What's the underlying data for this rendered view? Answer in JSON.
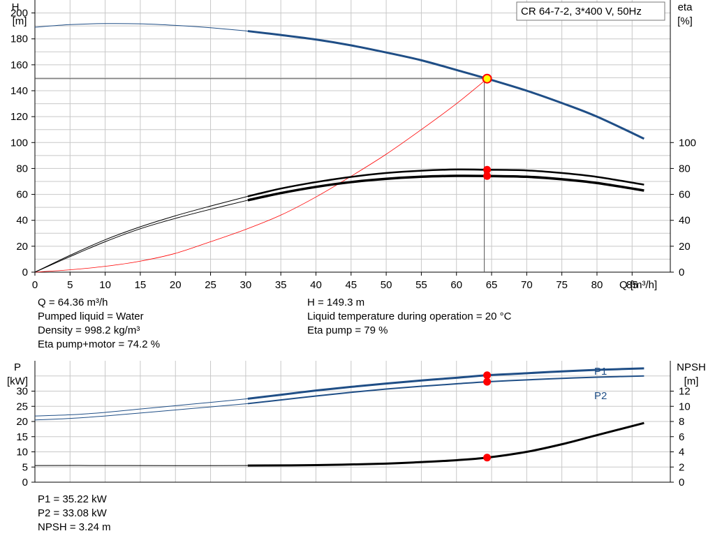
{
  "title": "CR 64-7-2, 3*400 V, 50Hz",
  "info_top_left": [
    "Q = 64.36 m³/h",
    "Pumped liquid = Water",
    "Density = 998.2 kg/m³",
    "Eta pump+motor = 74.2 %"
  ],
  "info_top_right": [
    "H = 149.3 m",
    "Liquid temperature during operation = 20 °C",
    "Eta pump = 79 %"
  ],
  "info_bottom": [
    "P1 = 35.22 kW",
    "P2 = 33.08 kW",
    "NPSH = 3.24 m"
  ],
  "colors": {
    "blue": "#1f4e86",
    "black": "#000000",
    "red": "#ff0000",
    "grid": "#c8c8c8",
    "duty_fill": "#ffff00"
  },
  "chart_data": [
    {
      "type": "line",
      "xlabel": "Q [m³/h]",
      "ylabel_left": [
        "H",
        "[m]"
      ],
      "ylabel_right": [
        "eta",
        "[%]"
      ],
      "xlim": [
        0,
        90
      ],
      "ylim_left": [
        0,
        210
      ],
      "ylim_right": [
        0,
        210
      ],
      "xticks": [
        0,
        5,
        10,
        15,
        20,
        25,
        30,
        35,
        40,
        45,
        50,
        55,
        60,
        65,
        70,
        75,
        80,
        85
      ],
      "yticks_left": [
        0,
        20,
        40,
        60,
        80,
        100,
        120,
        140,
        160,
        180,
        200
      ],
      "yticks_right": [
        0,
        20,
        40,
        60,
        80,
        100
      ],
      "grid": true,
      "operating_range": [
        30.3,
        86.7
      ],
      "duty_point": {
        "Q": 64.36,
        "H": 149.3
      },
      "series": [
        {
          "key": "H",
          "color": "#1f4e86",
          "x": [
            0,
            5,
            10,
            15,
            20,
            25,
            30.3,
            35,
            40,
            45,
            50,
            55,
            60,
            64.36,
            70,
            75,
            80,
            86.7
          ],
          "y": [
            189,
            191,
            191.8,
            191.6,
            190.4,
            188.6,
            186,
            183,
            179.5,
            175,
            169.5,
            163.5,
            156,
            149.3,
            140,
            130.5,
            120,
            103
          ]
        },
        {
          "key": "eta_pump",
          "color": "#000000",
          "x": [
            0,
            5,
            10,
            15,
            20,
            25,
            30.3,
            35,
            40,
            45,
            50,
            55,
            60,
            64.36,
            70,
            75,
            80,
            86.7
          ],
          "y": [
            0,
            13,
            25,
            35,
            43.5,
            51,
            58.5,
            64.5,
            69.5,
            73.5,
            76.5,
            78.3,
            79.2,
            79,
            78.5,
            76.5,
            73.5,
            67.5
          ]
        },
        {
          "key": "eta_pump_motor",
          "color": "#000000",
          "x": [
            0,
            5,
            10,
            15,
            20,
            25,
            30.3,
            35,
            40,
            45,
            50,
            55,
            60,
            64.36,
            70,
            75,
            80,
            86.7
          ],
          "y": [
            0,
            12,
            23.5,
            33.5,
            41.5,
            48.5,
            55.5,
            61,
            65.8,
            69.5,
            72,
            73.6,
            74.3,
            74.2,
            73.6,
            71.7,
            68.8,
            63
          ]
        },
        {
          "key": "system_curve",
          "color": "#ff0000",
          "x": [
            0,
            5,
            10,
            15,
            20,
            25,
            30,
            35,
            40,
            45,
            50,
            55,
            60,
            64.36
          ],
          "y": [
            0,
            1.8,
            4.5,
            8.5,
            14.5,
            23.5,
            33,
            44,
            58,
            74,
            91,
            110,
            130,
            149.3
          ]
        }
      ],
      "markers": [
        {
          "x": 64.36,
          "y": 149.3
        },
        {
          "x": 64.36,
          "y": 79
        },
        {
          "x": 64.36,
          "y": 74.2
        }
      ]
    },
    {
      "type": "line",
      "ylabel_left": [
        "P",
        "[kW]"
      ],
      "ylabel_right": [
        "NPSH",
        "[m]"
      ],
      "xlim": [
        0,
        90
      ],
      "ylim_left": [
        0,
        40
      ],
      "ylim_right": [
        0,
        16
      ],
      "yticks_left": [
        0,
        5,
        10,
        15,
        20,
        25,
        30
      ],
      "yticks_right": [
        0,
        2,
        4,
        6,
        8,
        10,
        12
      ],
      "grid": true,
      "operating_range": [
        30.3,
        86.7
      ],
      "series": [
        {
          "key": "P1",
          "name": "P1",
          "color": "#1f4e86",
          "x": [
            0,
            5,
            10,
            15,
            20,
            25,
            30.3,
            35,
            40,
            45,
            50,
            55,
            60,
            64.36,
            70,
            75,
            80,
            86.7
          ],
          "y": [
            21.8,
            22.2,
            23,
            24.1,
            25.2,
            26.3,
            27.5,
            28.8,
            30.2,
            31.4,
            32.5,
            33.5,
            34.4,
            35.22,
            35.9,
            36.5,
            37.0,
            37.5
          ]
        },
        {
          "key": "P2",
          "name": "P2",
          "color": "#1f4e86",
          "x": [
            0,
            5,
            10,
            15,
            20,
            25,
            30.3,
            35,
            40,
            45,
            50,
            55,
            60,
            64.36,
            70,
            75,
            80,
            86.7
          ],
          "y": [
            20.5,
            21,
            21.8,
            22.8,
            23.8,
            24.8,
            25.9,
            27.1,
            28.4,
            29.6,
            30.7,
            31.6,
            32.4,
            33.08,
            33.7,
            34.2,
            34.6,
            35.0
          ]
        },
        {
          "key": "NPSH",
          "axis": "right",
          "color": "#000000",
          "x": [
            0,
            10,
            20,
            30.3,
            40,
            50,
            55,
            60,
            64.36,
            70,
            75,
            80,
            86.7
          ],
          "y": [
            2.2,
            2.2,
            2.18,
            2.2,
            2.25,
            2.45,
            2.65,
            2.9,
            3.24,
            4.0,
            5.0,
            6.2,
            7.8
          ]
        }
      ],
      "markers": [
        {
          "x": 64.36,
          "y": 35.22,
          "axis": "left"
        },
        {
          "x": 64.36,
          "y": 33.08,
          "axis": "left"
        },
        {
          "x": 64.36,
          "y": 3.24,
          "axis": "right"
        }
      ]
    }
  ]
}
